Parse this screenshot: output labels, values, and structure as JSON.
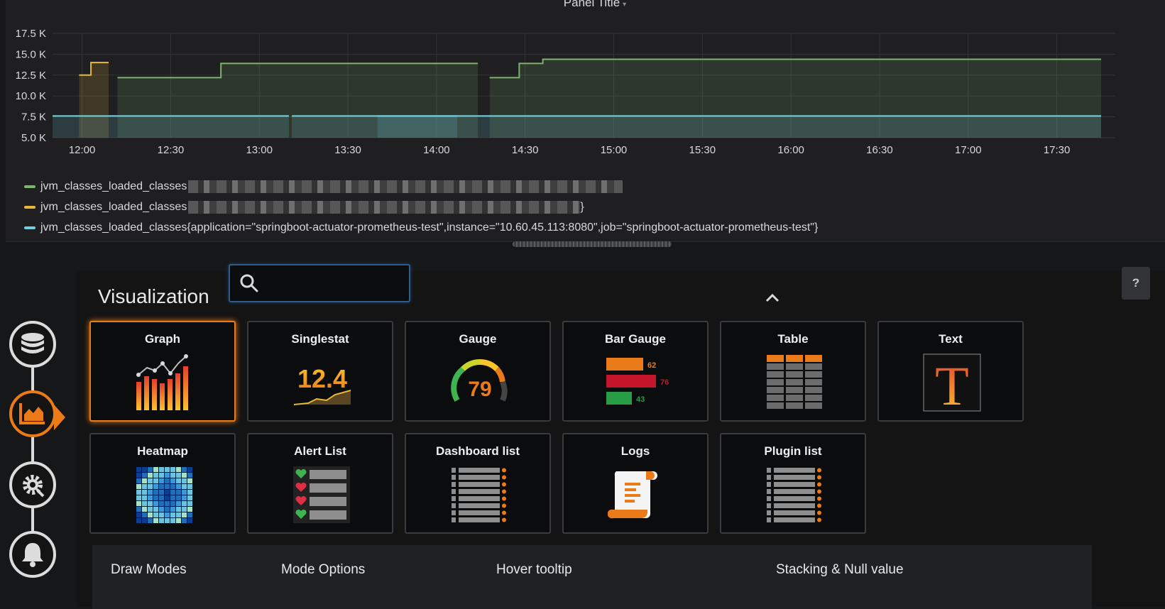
{
  "panel": {
    "title": "Panel Title",
    "title_caret": "▾"
  },
  "chart_data": {
    "type": "line",
    "title": "Panel Title",
    "yticks": [
      "5.0 K",
      "7.5 K",
      "10.0 K",
      "12.5 K",
      "15.0 K",
      "17.5 K"
    ],
    "xticks": [
      "12:00",
      "12:30",
      "13:00",
      "13:30",
      "14:00",
      "14:30",
      "15:00",
      "15:30",
      "16:00",
      "16:30",
      "17:00",
      "17:30"
    ],
    "ylim": [
      5000,
      17500
    ],
    "xlim_minutes": [
      710,
      1065
    ],
    "series": [
      {
        "name": "jvm_classes_loaded_classes (green, label partially obscured)",
        "color": "#7eb26d",
        "segments": [
          [
            [
              732,
              12200
            ],
            [
              767,
              12200
            ],
            [
              767,
              13900
            ],
            [
              854,
              13900
            ]
          ],
          [
            [
              858,
              12200
            ],
            [
              868,
              12200
            ],
            [
              868,
              13900
            ],
            [
              876,
              13900
            ],
            [
              876,
              14400
            ],
            [
              1065,
              14400
            ]
          ]
        ]
      },
      {
        "name": "jvm_classes_loaded_classes (yellow, label partially obscured)",
        "color": "#eab839",
        "segments": [
          [
            [
              719,
              12500
            ],
            [
              723,
              12500
            ],
            [
              723,
              14000
            ],
            [
              729,
              14000
            ]
          ]
        ]
      },
      {
        "name": "jvm_classes_loaded_classes{application=\"springboot-actuator-prometheus-test\",instance=\"10.60.45.113:8080\",job=\"springboot-actuator-prometheus-test\"}",
        "color": "#6ed0e0",
        "segments": [
          [
            [
              710,
              7600
            ],
            [
              790,
              7600
            ]
          ],
          [
            [
              791,
              7600
            ],
            [
              847,
              7600
            ]
          ],
          [
            [
              820,
              7600
            ],
            [
              1065,
              7600
            ]
          ]
        ]
      }
    ]
  },
  "legend": [
    {
      "color": "#7eb26d",
      "text": "jvm_classes_loaded_classes",
      "obscured": true,
      "tail": ""
    },
    {
      "color": "#eab839",
      "text": "jvm_classes_loaded_classes",
      "obscured": true,
      "tail": "}"
    },
    {
      "color": "#6ed0e0",
      "text": "jvm_classes_loaded_classes{application=\"springboot-actuator-prometheus-test\",instance=\"10.60.45.113:8080\",job=\"springboot-actuator-prometheus-test\"}",
      "obscured": false,
      "tail": ""
    }
  ],
  "nav": {
    "items": [
      {
        "name": "queries",
        "icon": "database-icon",
        "active": false
      },
      {
        "name": "visualization",
        "icon": "area-chart-icon",
        "active": true
      },
      {
        "name": "general",
        "icon": "gear-icon",
        "active": false
      },
      {
        "name": "alert",
        "icon": "bell-icon",
        "active": false
      }
    ]
  },
  "editor": {
    "title": "Visualization",
    "search_placeholder": "",
    "help_label": "?",
    "collapse_icon": "chevron-up-icon"
  },
  "viz_types": [
    {
      "label": "Graph",
      "selected": true,
      "icon": "graph-icon"
    },
    {
      "label": "Singlestat",
      "selected": false,
      "icon": "singlestat-icon",
      "value": "12.4"
    },
    {
      "label": "Gauge",
      "selected": false,
      "icon": "gauge-icon",
      "value": "79"
    },
    {
      "label": "Bar Gauge",
      "selected": false,
      "icon": "bar-gauge-icon",
      "values": [
        "62",
        "76",
        "43"
      ]
    },
    {
      "label": "Table",
      "selected": false,
      "icon": "table-icon"
    },
    {
      "label": "Text",
      "selected": false,
      "icon": "text-icon",
      "glyph": "T"
    },
    {
      "label": "Heatmap",
      "selected": false,
      "icon": "heatmap-icon"
    },
    {
      "label": "Alert List",
      "selected": false,
      "icon": "alert-list-icon"
    },
    {
      "label": "Dashboard list",
      "selected": false,
      "icon": "dashboard-list-icon"
    },
    {
      "label": "Logs",
      "selected": false,
      "icon": "logs-icon"
    },
    {
      "label": "Plugin list",
      "selected": false,
      "icon": "plugin-list-icon"
    }
  ],
  "options": {
    "headings": [
      "Draw Modes",
      "Mode Options",
      "Hover tooltip",
      "Stacking & Null value"
    ]
  },
  "colors": {
    "accent": "#eb7b18",
    "focus_border": "#2f5c8a",
    "green_series": "#7eb26d",
    "yellow_series": "#eab839",
    "cyan_series": "#6ed0e0"
  }
}
